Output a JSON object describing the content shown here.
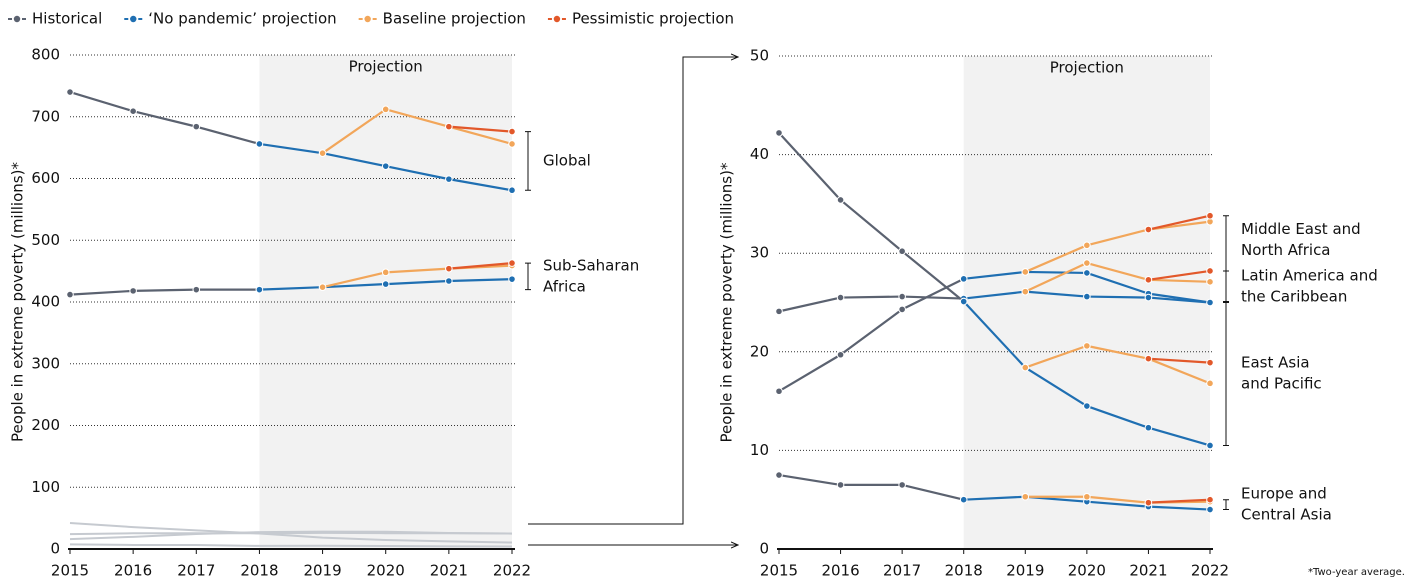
{
  "legend": [
    {
      "name": "Historical",
      "color": "#5b6270"
    },
    {
      "name": "‘No pandemic’ projection",
      "color": "#1f6fb2"
    },
    {
      "name": "Baseline projection",
      "color": "#f2a65a"
    },
    {
      "name": "Pessimistic projection",
      "color": "#e2582a"
    }
  ],
  "footnote": "*Two-year average.",
  "chart_data": [
    {
      "type": "line",
      "ylabel": "People in extreme poverty (millions)*",
      "shade_label": "Projection",
      "shade": [
        2018,
        2022
      ],
      "grid": true,
      "x": [
        2015,
        2016,
        2017,
        2018,
        2019,
        2020,
        2021,
        2022
      ],
      "xlim": [
        2015,
        2022
      ],
      "xticks": [
        2015,
        2016,
        2017,
        2018,
        2019,
        2020,
        2021,
        2022
      ],
      "ylim": [
        0,
        800
      ],
      "yticks": [
        0,
        100,
        200,
        300,
        400,
        500,
        600,
        700,
        800
      ],
      "regions": [
        {
          "label": [
            "Global"
          ],
          "series": [
            [
              740,
              709,
              684,
              656,
              null,
              null,
              null,
              null
            ],
            [
              null,
              null,
              null,
              656,
              641,
              620,
              599,
              581
            ],
            [
              null,
              null,
              null,
              null,
              641,
              712,
              684,
              656
            ],
            [
              null,
              null,
              null,
              null,
              null,
              null,
              684,
              676
            ]
          ]
        },
        {
          "label": [
            "Sub-Saharan",
            "Africa"
          ],
          "series": [
            [
              412,
              418,
              420,
              420,
              null,
              null,
              null,
              null
            ],
            [
              null,
              null,
              null,
              420,
              424,
              429,
              434,
              437
            ],
            [
              null,
              null,
              null,
              null,
              424,
              448,
              454,
              459
            ],
            [
              null,
              null,
              null,
              null,
              null,
              null,
              454,
              463
            ]
          ]
        }
      ]
    },
    {
      "type": "line",
      "ylabel": "People in extreme poverty (millions)*",
      "shade_label": "Projection",
      "shade": [
        2018,
        2022
      ],
      "grid": true,
      "x": [
        2015,
        2016,
        2017,
        2018,
        2019,
        2020,
        2021,
        2022
      ],
      "xlim": [
        2015,
        2022
      ],
      "xticks": [
        2015,
        2016,
        2017,
        2018,
        2019,
        2020,
        2021,
        2022
      ],
      "ylim": [
        0,
        50
      ],
      "yticks": [
        0,
        10,
        20,
        30,
        40,
        50
      ],
      "regions": [
        {
          "label": [
            "Middle East and",
            "North Africa"
          ],
          "series": [
            [
              16.0,
              19.7,
              24.3,
              27.4,
              null,
              null,
              null,
              null
            ],
            [
              null,
              null,
              null,
              27.4,
              28.1,
              28.0,
              25.9,
              25.0
            ],
            [
              null,
              null,
              null,
              null,
              28.1,
              30.8,
              32.4,
              33.2
            ],
            [
              null,
              null,
              null,
              null,
              null,
              null,
              32.4,
              33.8
            ]
          ]
        },
        {
          "label": [
            "Latin America and",
            "the Caribbean"
          ],
          "series": [
            [
              24.1,
              25.5,
              25.6,
              25.4,
              null,
              null,
              null,
              null
            ],
            [
              null,
              null,
              null,
              25.4,
              26.1,
              25.6,
              25.5,
              25.0
            ],
            [
              null,
              null,
              null,
              null,
              26.1,
              29.0,
              27.3,
              27.1
            ],
            [
              null,
              null,
              null,
              null,
              null,
              null,
              27.3,
              28.2
            ]
          ]
        },
        {
          "label": [
            "East Asia",
            "and Pacific"
          ],
          "series": [
            [
              42.2,
              35.4,
              30.2,
              25.1,
              null,
              null,
              null,
              null
            ],
            [
              null,
              null,
              null,
              25.1,
              18.4,
              14.5,
              12.3,
              10.5
            ],
            [
              null,
              null,
              null,
              null,
              18.4,
              20.6,
              19.3,
              16.8
            ],
            [
              null,
              null,
              null,
              null,
              null,
              null,
              19.3,
              18.9
            ]
          ]
        },
        {
          "label": [
            "Europe and",
            "Central Asia"
          ],
          "series": [
            [
              7.5,
              6.5,
              6.5,
              5.0,
              null,
              null,
              null,
              null
            ],
            [
              null,
              null,
              null,
              5.0,
              5.3,
              4.8,
              4.3,
              4.0
            ],
            [
              null,
              null,
              null,
              null,
              5.3,
              5.3,
              4.7,
              4.8
            ],
            [
              null,
              null,
              null,
              null,
              null,
              null,
              4.7,
              5.0
            ]
          ]
        }
      ]
    }
  ]
}
